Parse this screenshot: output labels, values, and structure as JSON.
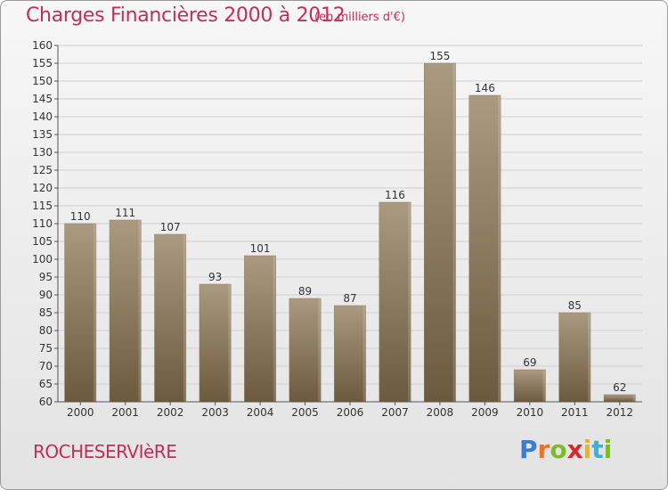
{
  "header": {
    "title": "Charges Financières 2000 à 2012",
    "subtitle": "(en milliers d'€)"
  },
  "footer": {
    "commune": "ROCHESERVIèRE",
    "logo_letters": [
      "P",
      "r",
      "o",
      "x",
      "i",
      "t",
      "i"
    ],
    "logo_colors": [
      "#3c7bd4",
      "#e8742a",
      "#7dbb2c",
      "#d42a2a",
      "#f0b21c",
      "#3cb0d8",
      "#7dbb2c"
    ]
  },
  "colors": {
    "bar_top": "#a99a80",
    "bar_bottom": "#6b5a3e",
    "grid": "#cfcfcf",
    "axis": "#555555"
  },
  "chart_data": {
    "type": "bar",
    "title": "Charges Financières 2000 à 2012",
    "subtitle": "(en milliers d'€)",
    "categories": [
      "2000",
      "2001",
      "2002",
      "2003",
      "2004",
      "2005",
      "2006",
      "2007",
      "2008",
      "2009",
      "2010",
      "2011",
      "2012"
    ],
    "values": [
      110,
      111,
      107,
      93,
      101,
      89,
      87,
      116,
      155,
      146,
      69,
      85,
      62
    ],
    "ylim": [
      60,
      160
    ],
    "ytick_step": 5,
    "grid": true,
    "xlabel": "",
    "ylabel": ""
  }
}
